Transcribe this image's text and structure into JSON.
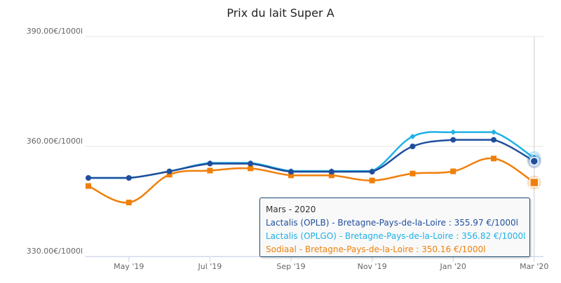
{
  "chart_data": {
    "type": "line",
    "title": "Prix du lait Super A",
    "xlabel": "",
    "ylabel": "",
    "x": [
      "Apr '19",
      "May '19",
      "Jun '19",
      "Jul '19",
      "Aug '19",
      "Sep '19",
      "Oct '19",
      "Nov '19",
      "Dec '19",
      "Jan '20",
      "Feb '20",
      "Mar '20"
    ],
    "x_tick_labels": [
      "May '19",
      "Jul '19",
      "Sep '19",
      "Nov '19",
      "Jan '20",
      "Mar '20"
    ],
    "y_tick_labels": [
      "330.00€/1000l",
      "360.00€/1000l",
      "390.00€/1000l"
    ],
    "ylim": [
      330,
      390
    ],
    "grid": true,
    "series": [
      {
        "name": "Lactalis (OPLB) - Bretagne-Pays-de-la-Loire",
        "color": "#1f4e9c",
        "marker": "circle",
        "values": [
          351.4,
          351.4,
          353.2,
          355.3,
          355.3,
          353.1,
          353.1,
          353.1,
          360.0,
          361.8,
          361.8,
          355.97
        ]
      },
      {
        "name": "Lactalis (OPLGO) - Bretagne-Pays-de-la-Loire",
        "color": "#1fb1e6",
        "marker": "diamond",
        "values": [
          351.4,
          351.4,
          353.2,
          355.5,
          355.5,
          353.3,
          353.3,
          353.3,
          362.7,
          363.9,
          363.9,
          356.82
        ]
      },
      {
        "name": "Sodiaal - Bretagne-Pays-de-la-Loire",
        "color": "#f07f09",
        "marker": "square",
        "values": [
          349.2,
          344.7,
          352.3,
          353.4,
          354.0,
          352.1,
          352.1,
          350.7,
          352.6,
          353.2,
          356.7,
          350.16
        ]
      }
    ]
  },
  "tooltip": {
    "title": "Mars - 2020",
    "lines": [
      "Lactalis (OPLB) - Bretagne-Pays-de-la-Loire : 355.97 €/1000l",
      "Lactalis (OPLGO) - Bretagne-Pays-de-la-Loire : 356.82 €/1000l",
      "Sodiaal - Bretagne-Pays-de-la-Loire : 350.16 €/1000l"
    ]
  }
}
